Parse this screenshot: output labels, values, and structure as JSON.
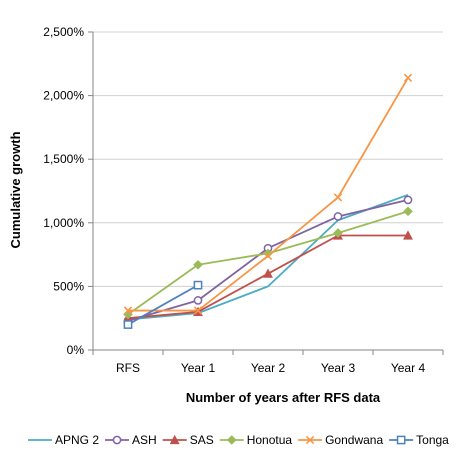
{
  "chart_data": {
    "type": "line",
    "title": "",
    "xlabel": "Number of years after RFS data",
    "ylabel": "Cumulative growth",
    "categories": [
      "RFS",
      "Year 1",
      "Year 2",
      "Year 3",
      "Year 4"
    ],
    "y_ticks": [
      "0%",
      "500%",
      "1,000%",
      "1,500%",
      "2,000%",
      "2,500%"
    ],
    "ylim": [
      0,
      2500
    ],
    "grid": "horizontal",
    "legend_position": "bottom",
    "series": [
      {
        "name": "APNG 2",
        "color": "#4bacc6",
        "marker": "none",
        "values": [
          240,
          290,
          500,
          1020,
          1220
        ]
      },
      {
        "name": "ASH",
        "color": "#8064a2",
        "marker": "circle",
        "values": [
          230,
          390,
          800,
          1050,
          1180
        ]
      },
      {
        "name": "SAS",
        "color": "#c0504d",
        "marker": "triangle",
        "values": [
          250,
          300,
          600,
          900,
          900
        ]
      },
      {
        "name": "Honotua",
        "color": "#9bbb59",
        "marker": "diamond",
        "values": [
          280,
          670,
          760,
          920,
          1090
        ]
      },
      {
        "name": "Gondwana",
        "color": "#f79646",
        "marker": "x",
        "values": [
          310,
          310,
          740,
          1200,
          2140
        ]
      },
      {
        "name": "Tonga",
        "color": "#4f81bd",
        "marker": "square",
        "values": [
          200,
          510,
          null,
          null,
          null
        ]
      }
    ]
  }
}
